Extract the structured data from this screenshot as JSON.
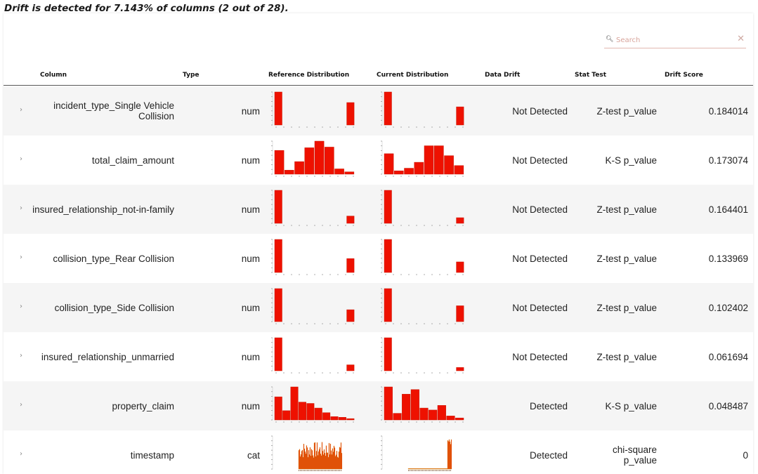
{
  "summary": "Drift is detected for 7.143% of columns (2 out of 28).",
  "search": {
    "placeholder": "Search"
  },
  "colors": {
    "bar": "#ee1100",
    "bar_border": "#d08a00",
    "axis": "#999999",
    "header_line": "#555555"
  },
  "icons": {
    "search": "magnifier-icon",
    "clear": "close-icon",
    "expand": "chevron-right-icon"
  },
  "header": {
    "column": "Column",
    "type": "Type",
    "reference": "Reference Distribution",
    "current": "Current Distribution",
    "drift": "Data Drift",
    "stat": "Stat Test",
    "score": "Drift Score"
  },
  "rows": [
    {
      "name": "incident_type_Single Vehicle Collision",
      "type": "num",
      "drift": "Not Detected",
      "stat": "Z-test p_value",
      "score": "0.184014",
      "ref": [
        1,
        0,
        0,
        0,
        0,
        0,
        0,
        0,
        0,
        0.68
      ],
      "cur": [
        1,
        0,
        0,
        0,
        0,
        0,
        0,
        0,
        0,
        0.55
      ]
    },
    {
      "name": "total_claim_amount",
      "type": "num",
      "drift": "Not Detected",
      "stat": "K-S p_value",
      "score": "0.173074",
      "ref": [
        0.72,
        0.12,
        0.38,
        0.8,
        1,
        0.82,
        0.16,
        0.07
      ],
      "cur": [
        0.62,
        0.1,
        0.18,
        0.36,
        0.86,
        0.86,
        0.56,
        0.26
      ]
    },
    {
      "name": "insured_relationship_not-in-family",
      "type": "num",
      "drift": "Not Detected",
      "stat": "Z-test p_value",
      "score": "0.164401",
      "ref": [
        1,
        0,
        0,
        0,
        0,
        0,
        0,
        0,
        0,
        0.22
      ],
      "cur": [
        1,
        0,
        0,
        0,
        0,
        0,
        0,
        0,
        0,
        0.17
      ]
    },
    {
      "name": "collision_type_Rear Collision",
      "type": "num",
      "drift": "Not Detected",
      "stat": "Z-test p_value",
      "score": "0.133969",
      "ref": [
        1,
        0,
        0,
        0,
        0,
        0,
        0,
        0,
        0,
        0.42
      ],
      "cur": [
        1,
        0,
        0,
        0,
        0,
        0,
        0,
        0,
        0,
        0.32
      ]
    },
    {
      "name": "collision_type_Side Collision",
      "type": "num",
      "drift": "Not Detected",
      "stat": "Z-test p_value",
      "score": "0.102402",
      "ref": [
        1,
        0,
        0,
        0,
        0,
        0,
        0,
        0,
        0,
        0.36
      ],
      "cur": [
        1,
        0,
        0,
        0,
        0,
        0,
        0,
        0,
        0,
        0.48
      ]
    },
    {
      "name": "insured_relationship_unmarried",
      "type": "num",
      "drift": "Not Detected",
      "stat": "Z-test p_value",
      "score": "0.061694",
      "ref": [
        1,
        0,
        0,
        0,
        0,
        0,
        0,
        0,
        0,
        0.18
      ],
      "cur": [
        1,
        0,
        0,
        0,
        0,
        0,
        0,
        0,
        0,
        0.1
      ]
    },
    {
      "name": "property_claim",
      "type": "num",
      "drift": "Detected",
      "stat": "K-S p_value",
      "score": "0.048487",
      "ref": [
        0.7,
        0.28,
        1,
        0.54,
        0.5,
        0.36,
        0.22,
        0.1,
        0.08,
        0.04
      ],
      "cur": [
        1,
        0.2,
        0.78,
        0.92,
        0.36,
        0.3,
        0.44,
        0.12,
        0.06
      ]
    },
    {
      "name": "timestamp",
      "type": "cat",
      "drift": "Detected",
      "stat": "chi-square p_value",
      "score": "0",
      "ref_kind": "dense_full",
      "cur_kind": "dense_spike"
    }
  ]
}
